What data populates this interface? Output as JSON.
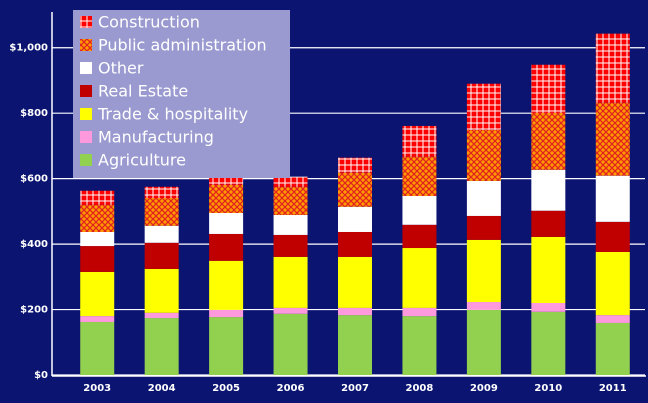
{
  "chart_data": {
    "type": "stacked-bar",
    "categories": [
      "2003",
      "2004",
      "2005",
      "2006",
      "2007",
      "2008",
      "2009",
      "2010",
      "2011"
    ],
    "series": [
      {
        "name": "Agriculture",
        "color": "#92d050",
        "values": [
          162,
          174,
          177,
          187,
          183,
          180,
          199,
          193,
          159
        ]
      },
      {
        "name": "Manufacturing",
        "color": "#ff99dd",
        "values": [
          18,
          16,
          22,
          18,
          22,
          25,
          24,
          27,
          24
        ]
      },
      {
        "name": "Trade & hospitality",
        "color": "#ffff00",
        "values": [
          135,
          134,
          150,
          156,
          156,
          183,
          190,
          202,
          193
        ]
      },
      {
        "name": "Real Estate",
        "color": "#c00000",
        "values": [
          79,
          80,
          82,
          67,
          76,
          71,
          73,
          80,
          92
        ]
      },
      {
        "name": "Other",
        "color": "#ffffff",
        "values": [
          43,
          52,
          64,
          61,
          77,
          88,
          107,
          125,
          141
        ]
      },
      {
        "name": "Public administration",
        "color": "#ff9900",
        "pattern": "cross",
        "values": [
          83,
          85,
          86,
          86,
          104,
          120,
          156,
          174,
          223
        ]
      },
      {
        "name": "Construction",
        "color": "#ff0000",
        "pattern": "grid",
        "values": [
          43,
          34,
          28,
          31,
          46,
          94,
          141,
          147,
          211
        ]
      }
    ],
    "ylim": [
      0,
      1100
    ],
    "yticks": [
      {
        "value": 0,
        "label": "$0"
      },
      {
        "value": 200,
        "label": "$200"
      },
      {
        "value": 400,
        "label": "$400"
      },
      {
        "value": 600,
        "label": "$600"
      },
      {
        "value": 800,
        "label": "$800"
      },
      {
        "value": 1000,
        "label": "$1,000"
      }
    ],
    "grid": true,
    "legend": "top-left"
  }
}
